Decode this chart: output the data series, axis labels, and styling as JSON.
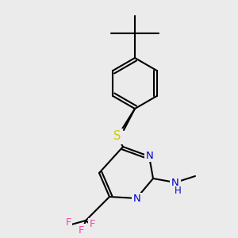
{
  "background_color": "#ebebeb",
  "bond_color": "#000000",
  "bond_width": 1.5,
  "atom_colors": {
    "N": "#0000cc",
    "S": "#cccc00",
    "F": "#ff44aa",
    "C": "#000000"
  },
  "font_size": 9.5,
  "fig_width": 3.0,
  "fig_height": 3.0,
  "dpi": 100
}
